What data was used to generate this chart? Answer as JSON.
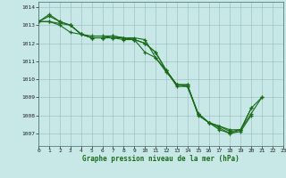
{
  "title": "Graphe pression niveau de la mer (hPa)",
  "bg_color": "#c8e8e8",
  "grid_color": "#99bbbb",
  "line_color": "#1a6b1a",
  "xlim": [
    0,
    23
  ],
  "ylim": [
    1006.3,
    1014.3
  ],
  "yticks": [
    1007,
    1008,
    1009,
    1010,
    1011,
    1012,
    1013,
    1014
  ],
  "xticks": [
    0,
    1,
    2,
    3,
    4,
    5,
    6,
    7,
    8,
    9,
    10,
    11,
    12,
    13,
    14,
    15,
    16,
    17,
    18,
    19,
    20,
    21,
    22,
    23
  ],
  "series": [
    [
      1013.2,
      1013.6,
      1013.2,
      1013.0,
      1012.5,
      1012.3,
      1012.3,
      1012.3,
      1012.2,
      1012.2,
      1011.5,
      1011.2,
      1010.5,
      1009.6,
      1009.6,
      1008.1,
      1007.6,
      1007.3,
      1007.0,
      1007.1,
      1008.0,
      null,
      null,
      null
    ],
    [
      1013.2,
      1013.2,
      1013.0,
      1012.6,
      1012.5,
      1012.3,
      1012.3,
      1012.4,
      1012.3,
      1012.3,
      1012.2,
      1011.2,
      1010.4,
      1009.7,
      1009.7,
      1008.1,
      1007.6,
      1007.4,
      1007.2,
      1007.2,
      1008.4,
      null,
      null,
      null
    ],
    [
      1013.2,
      1013.2,
      1013.1,
      1013.0,
      1012.5,
      1012.3,
      1012.3,
      1012.3,
      1012.3,
      1012.2,
      1012.0,
      1011.5,
      1010.5,
      1009.7,
      1009.6,
      1008.1,
      1007.6,
      1007.4,
      1007.1,
      1007.2,
      1008.4,
      1009.0,
      null,
      null
    ],
    [
      1013.2,
      1013.5,
      1013.2,
      1013.0,
      1012.5,
      1012.4,
      1012.4,
      1012.4,
      1012.3,
      1012.2,
      1012.0,
      1011.5,
      1010.5,
      1009.7,
      1009.7,
      1008.0,
      1007.6,
      1007.2,
      1007.0,
      1007.2,
      1008.1,
      1009.0,
      null,
      null
    ]
  ]
}
